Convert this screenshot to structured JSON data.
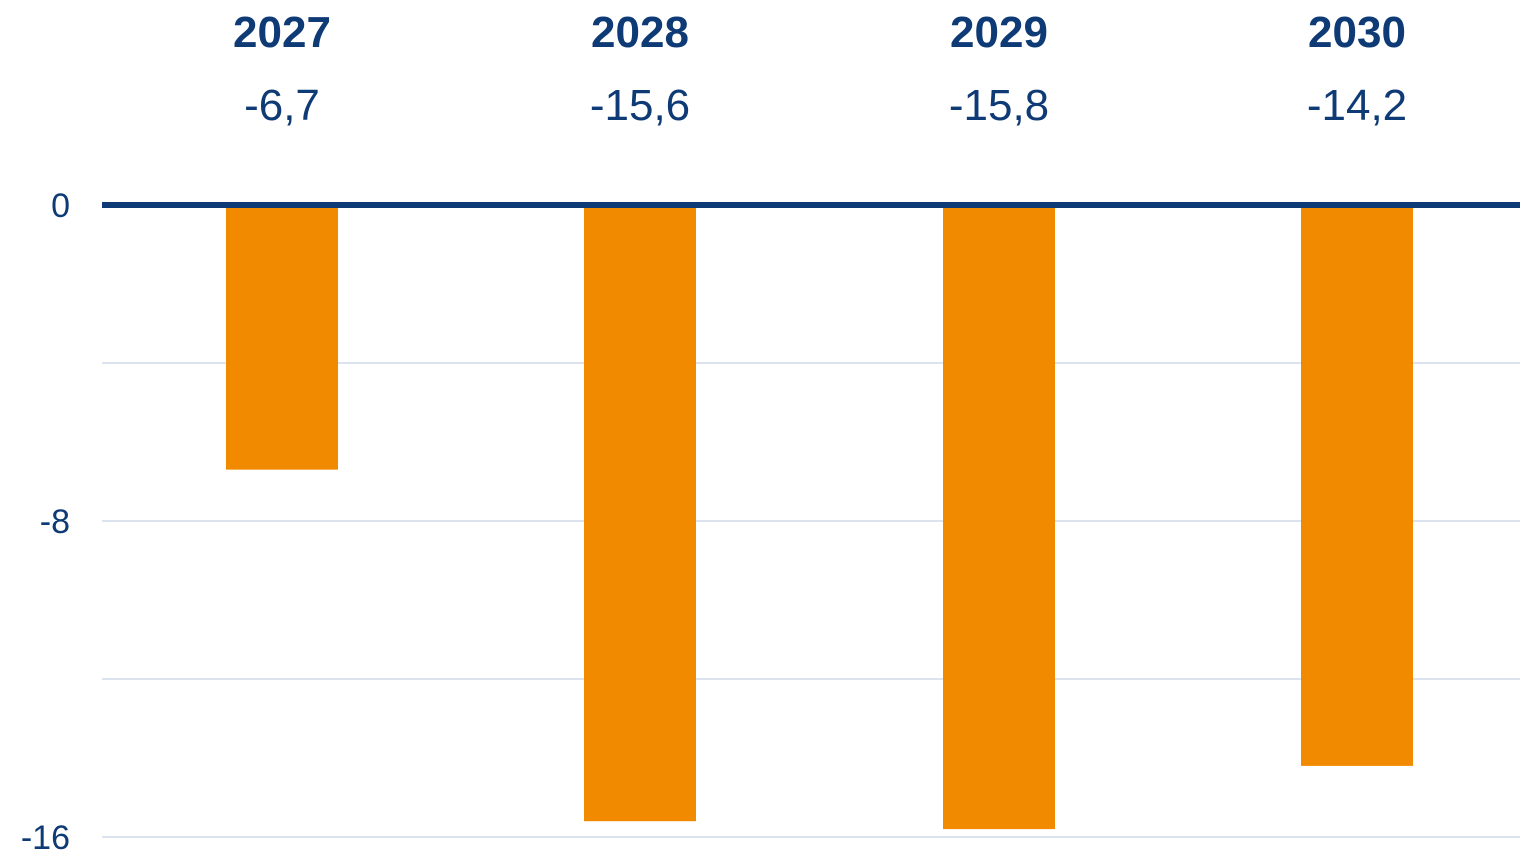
{
  "chart_data": {
    "type": "bar",
    "title": "",
    "xlabel": "",
    "ylabel": "",
    "categories": [
      "2027",
      "2028",
      "2029",
      "2030"
    ],
    "values": [
      -6.7,
      -15.6,
      -15.8,
      -14.2
    ],
    "value_labels": [
      "-6,7",
      "-15,6",
      "-15,8",
      "-14,2"
    ],
    "ylim": [
      -16,
      0
    ],
    "yticks": [
      0,
      -8,
      -16
    ],
    "ytick_labels": [
      "0",
      "-8",
      "-16"
    ],
    "grid_values": [
      -4,
      -8,
      -12,
      -16
    ],
    "grid": true,
    "legend": "none",
    "category_labels_position": "top",
    "colors": {
      "bar": "#F28A00",
      "zero_line": "#0E3A75",
      "text": "#0E3A75",
      "grid": "#DCE3EE"
    }
  }
}
